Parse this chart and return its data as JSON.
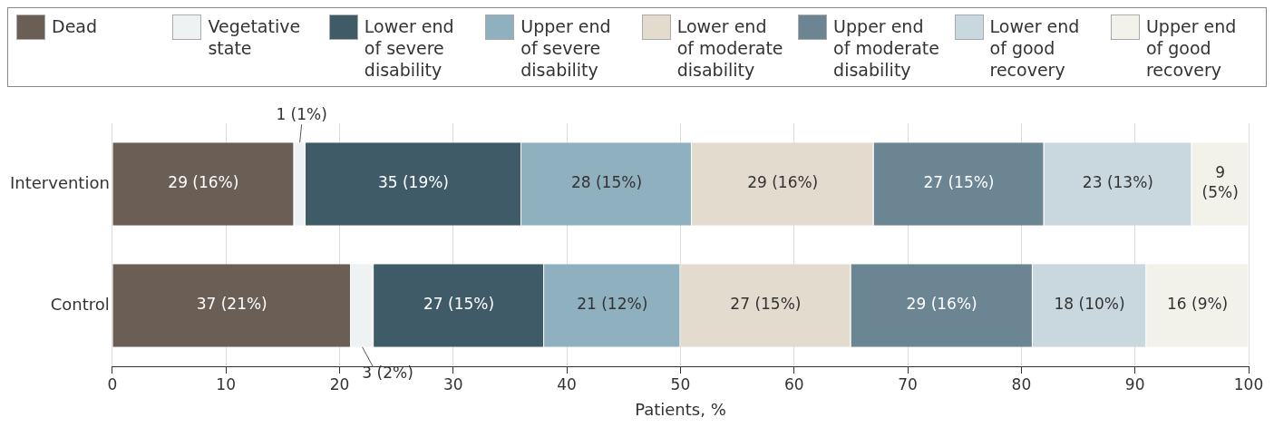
{
  "chart_data": {
    "type": "bar",
    "orientation": "horizontal",
    "stacked": true,
    "categories": [
      "Intervention",
      "Control"
    ],
    "series": [
      {
        "name": "Dead",
        "color": "#6b5e55",
        "values": [
          16,
          21
        ],
        "value_labels": [
          "29 (16%)",
          "37 (21%)"
        ]
      },
      {
        "name": "Vegetative state",
        "color": "#eef2f3",
        "values": [
          1,
          2
        ],
        "value_labels": [
          "1 (1%)",
          "3 (2%)"
        ]
      },
      {
        "name": "Lower end of severe disability",
        "color": "#3f5b68",
        "values": [
          19,
          15
        ],
        "value_labels": [
          "35 (19%)",
          "27 (15%)"
        ]
      },
      {
        "name": "Upper end of severe disability",
        "color": "#8fb0be",
        "values": [
          15,
          12
        ],
        "value_labels": [
          "28 (15%)",
          "21 (12%)"
        ]
      },
      {
        "name": "Lower end of moderate disability",
        "color": "#e3dbcd",
        "values": [
          16,
          15
        ],
        "value_labels": [
          "29 (16%)",
          "27 (15%)"
        ]
      },
      {
        "name": "Upper end of moderate disability",
        "color": "#6b8592",
        "values": [
          15,
          16
        ],
        "value_labels": [
          "27 (15%)",
          "29 (16%)"
        ]
      },
      {
        "name": "Lower end of good recovery",
        "color": "#c9d7df",
        "values": [
          13,
          10
        ],
        "value_labels": [
          "23 (13%)",
          "18 (10%)"
        ]
      },
      {
        "name": "Upper end of good recovery",
        "color": "#f2f1ea",
        "values": [
          5,
          9
        ],
        "value_labels": [
          "9 (5%)",
          "16 (9%)"
        ]
      }
    ],
    "xlabel": "Patients, %",
    "xlim": [
      0,
      100
    ],
    "xticks": [
      0,
      10,
      20,
      30,
      40,
      50,
      60,
      70,
      80,
      90,
      100
    ],
    "grid": "x",
    "legend": "top"
  }
}
